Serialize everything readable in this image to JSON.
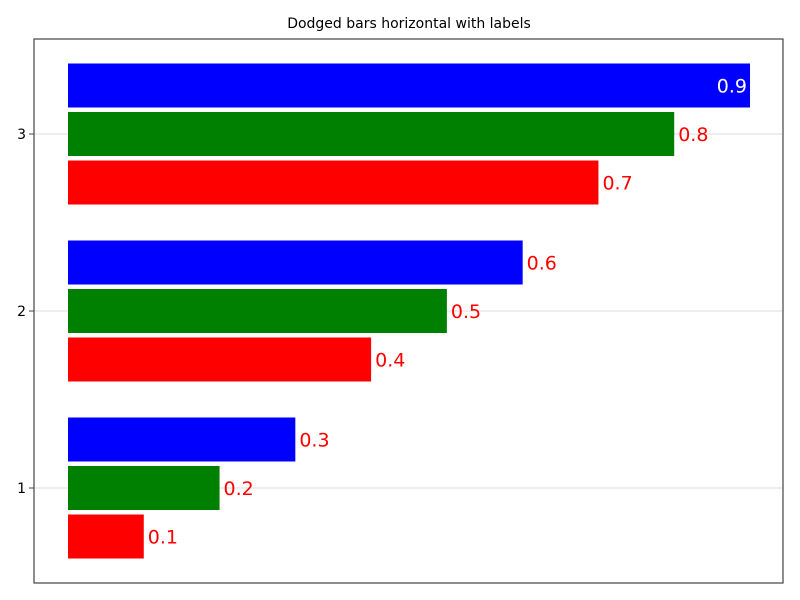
{
  "chart_data": {
    "type": "bar",
    "orientation": "horizontal",
    "title": "Dodged bars horizontal with labels",
    "xlabel": "",
    "ylabel": "",
    "categories": [
      "1",
      "2",
      "3"
    ],
    "series": [
      {
        "color": "#ff0000",
        "values": [
          0.1,
          0.4,
          0.7
        ]
      },
      {
        "color": "#008000",
        "values": [
          0.2,
          0.5,
          0.8
        ]
      },
      {
        "color": "#0000ff",
        "values": [
          0.3,
          0.6,
          0.9
        ]
      }
    ],
    "data_labels": {
      "default_color": "#ff0000",
      "inside_color": "#ffffff"
    },
    "xlim": [
      0,
      0.9
    ],
    "x_ticks_visible": false,
    "grid": "horizontal",
    "legend": "none"
  }
}
